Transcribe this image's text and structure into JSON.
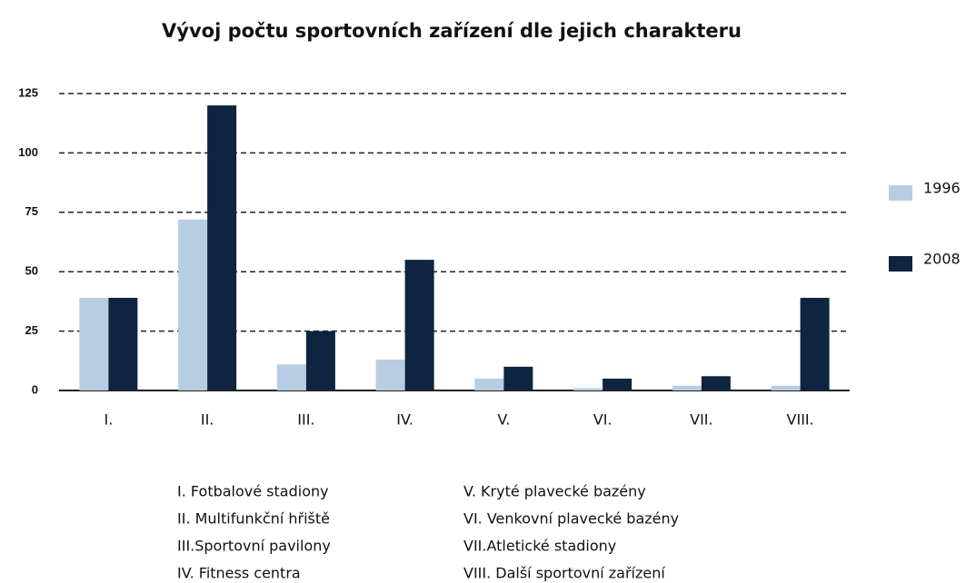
{
  "chart_data": {
    "type": "bar",
    "title": "Vývoj počtu sportovních zařízení dle jejich charakteru",
    "categories": [
      "I.",
      "II.",
      "III.",
      "IV.",
      "V.",
      "VI.",
      "VII.",
      "VIII."
    ],
    "series": [
      {
        "name": "1996",
        "color": "#b8cce4",
        "values": [
          39,
          72,
          11,
          13,
          5,
          1,
          2,
          2
        ]
      },
      {
        "name": "2008",
        "color": "#0f2440",
        "values": [
          39,
          120,
          25,
          55,
          10,
          5,
          6,
          39
        ]
      }
    ],
    "ylim": [
      0,
      125
    ],
    "yticks": [
      0,
      25,
      50,
      75,
      100,
      125
    ],
    "grid": true,
    "legend": "right",
    "annotations": [
      "I. Fotbalové stadiony",
      "II. Multifunkční hřiště",
      "III.Sportovní pavilony",
      "IV. Fitness centra",
      "V.  Kryté plavecké bazény",
      "VI. Venkovní plavecké bazény",
      "VII.Atletické stadiony",
      "VIII. Další sportovní zařízení"
    ]
  }
}
